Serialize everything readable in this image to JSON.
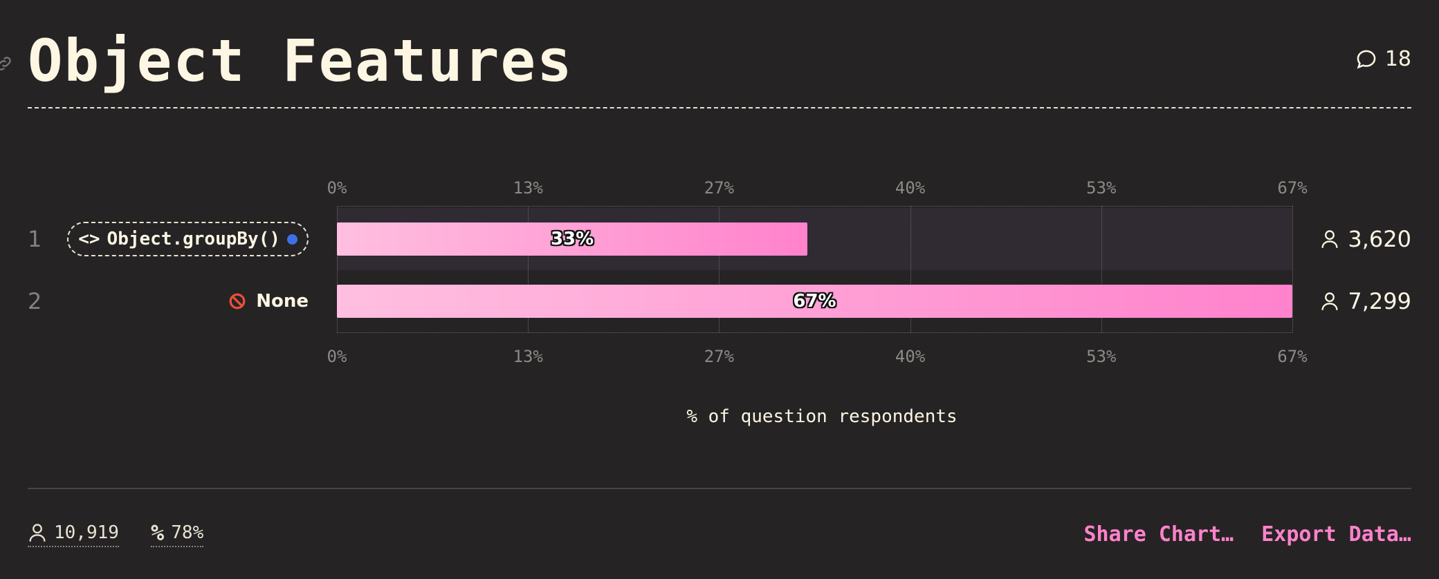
{
  "header": {
    "title": "Object Features",
    "comment_count": "18"
  },
  "chart_data": {
    "type": "bar",
    "orientation": "horizontal",
    "categories": [
      "Object.groupBy()",
      "None"
    ],
    "ranks": [
      "1",
      "2"
    ],
    "values": [
      33,
      67
    ],
    "value_labels": [
      "33%",
      "67%"
    ],
    "counts": [
      "3,620",
      "7,299"
    ],
    "xlim": [
      0,
      67
    ],
    "ticks": [
      "0%",
      "13%",
      "27%",
      "40%",
      "53%",
      "67%"
    ],
    "xlabel": "% of question respondents",
    "bar_gradient": [
      "#ffbfe0",
      "#ff82cc"
    ],
    "grid": true
  },
  "footer": {
    "respondents": "10,919",
    "percent": "78%",
    "share_label": "Share Chart…",
    "export_label": "Export Data…"
  },
  "colors": {
    "background": "#262324",
    "accent": "#ff82cc",
    "text": "#fdf6e3",
    "marker_dot": "#3f6fe8"
  }
}
